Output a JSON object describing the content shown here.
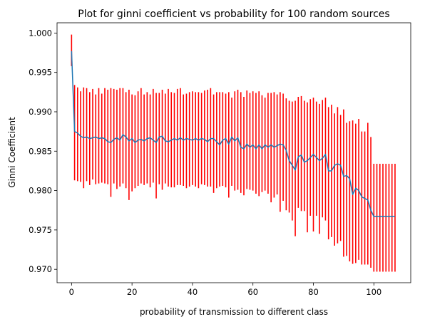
{
  "chart_data": {
    "type": "line",
    "title": "Plot for ginni coefficient vs probability for 100 random sources",
    "xlabel": "probability of transmission to different class",
    "ylabel": "Ginni Coefficient",
    "xlim": [
      -4.8,
      112.2
    ],
    "ylim": [
      0.9683,
      1.0013
    ],
    "xticks": [
      0,
      20,
      40,
      60,
      80,
      100
    ],
    "yticks": [
      0.97,
      0.975,
      0.98,
      0.985,
      0.99,
      0.995,
      1.0
    ],
    "ytick_labels": [
      "0.970",
      "0.975",
      "0.980",
      "0.985",
      "0.990",
      "0.995",
      "1.000"
    ],
    "grid": false,
    "series": [
      {
        "kind": "errorbar",
        "color": "#1f77b4",
        "ecolor": "#ff0000",
        "x": [
          0,
          1,
          2,
          3,
          4,
          5,
          6,
          7,
          8,
          9,
          10,
          11,
          12,
          13,
          14,
          15,
          16,
          17,
          18,
          19,
          20,
          21,
          22,
          23,
          24,
          25,
          26,
          27,
          28,
          29,
          30,
          31,
          32,
          33,
          34,
          35,
          36,
          37,
          38,
          39,
          40,
          41,
          42,
          43,
          44,
          45,
          46,
          47,
          48,
          49,
          50,
          51,
          52,
          53,
          54,
          55,
          56,
          57,
          58,
          59,
          60,
          61,
          62,
          63,
          64,
          65,
          66,
          67,
          68,
          69,
          70,
          71,
          72,
          73,
          74,
          75,
          76,
          77,
          78,
          79,
          80,
          81,
          82,
          83,
          84,
          85,
          86,
          87,
          88,
          89,
          90,
          91,
          92,
          93,
          94,
          95,
          96,
          97,
          98,
          99,
          100,
          101,
          102,
          103,
          104,
          105,
          106,
          107
        ],
        "y": [
          0.9977,
          0.9875,
          0.9873,
          0.9869,
          0.9867,
          0.9868,
          0.9866,
          0.9867,
          0.9868,
          0.9866,
          0.9867,
          0.9866,
          0.9862,
          0.9861,
          0.9865,
          0.9867,
          0.9864,
          0.9871,
          0.9868,
          0.9863,
          0.9866,
          0.9861,
          0.9864,
          0.9865,
          0.9863,
          0.9866,
          0.9867,
          0.9864,
          0.9861,
          0.9868,
          0.9869,
          0.9863,
          0.9862,
          0.9864,
          0.9866,
          0.9864,
          0.9867,
          0.9864,
          0.9866,
          0.9865,
          0.9864,
          0.9866,
          0.9864,
          0.9866,
          0.9865,
          0.9862,
          0.9866,
          0.9866,
          0.9862,
          0.9858,
          0.9864,
          0.9866,
          0.9859,
          0.9868,
          0.9863,
          0.9867,
          0.9855,
          0.9853,
          0.9859,
          0.9855,
          0.9858,
          0.9853,
          0.9858,
          0.9853,
          0.9858,
          0.9855,
          0.9858,
          0.9855,
          0.9857,
          0.9859,
          0.9858,
          0.9851,
          0.9838,
          0.9832,
          0.9826,
          0.9843,
          0.9845,
          0.9836,
          0.9838,
          0.9842,
          0.9846,
          0.9842,
          0.9838,
          0.9841,
          0.9846,
          0.9825,
          0.9825,
          0.9832,
          0.9834,
          0.9832,
          0.9818,
          0.9819,
          0.9815,
          0.9795,
          0.9803,
          0.98,
          0.9792,
          0.979,
          0.9788,
          0.9775,
          0.9767,
          0.9767,
          0.9767,
          0.9767,
          0.9767,
          0.9767,
          0.9767,
          0.9767
        ],
        "yerr_low": [
          0.9958,
          0.9813,
          0.9812,
          0.9811,
          0.9803,
          0.9812,
          0.9807,
          0.9814,
          0.9808,
          0.9809,
          0.981,
          0.9809,
          0.9808,
          0.9792,
          0.9809,
          0.9802,
          0.9805,
          0.9809,
          0.9803,
          0.9788,
          0.9799,
          0.9803,
          0.9806,
          0.9809,
          0.9807,
          0.9809,
          0.9804,
          0.981,
          0.979,
          0.9808,
          0.9801,
          0.9809,
          0.9805,
          0.9804,
          0.9804,
          0.9807,
          0.9807,
          0.9806,
          0.9803,
          0.9805,
          0.9807,
          0.9805,
          0.9803,
          0.9808,
          0.9807,
          0.9805,
          0.9805,
          0.9797,
          0.9803,
          0.9805,
          0.9806,
          0.9804,
          0.9791,
          0.9806,
          0.98,
          0.9801,
          0.9797,
          0.9794,
          0.9802,
          0.9801,
          0.98,
          0.9796,
          0.9793,
          0.9798,
          0.98,
          0.9796,
          0.9785,
          0.9791,
          0.9795,
          0.9773,
          0.9787,
          0.9775,
          0.9772,
          0.9762,
          0.9742,
          0.9778,
          0.9774,
          0.9774,
          0.9747,
          0.9768,
          0.9748,
          0.9768,
          0.9745,
          0.9766,
          0.9762,
          0.9738,
          0.9741,
          0.973,
          0.9733,
          0.9736,
          0.9716,
          0.9717,
          0.971,
          0.9707,
          0.9708,
          0.9712,
          0.9706,
          0.9706,
          0.9706,
          0.9702,
          0.9697,
          0.9697,
          0.9697,
          0.9697,
          0.9697,
          0.9697,
          0.9697,
          0.9697
        ],
        "yerr_high": [
          0.9998,
          0.9934,
          0.9931,
          0.9926,
          0.9931,
          0.993,
          0.9925,
          0.9929,
          0.9922,
          0.993,
          0.9923,
          0.993,
          0.9928,
          0.993,
          0.9929,
          0.9928,
          0.993,
          0.993,
          0.9925,
          0.9928,
          0.9922,
          0.9921,
          0.9926,
          0.993,
          0.9922,
          0.9925,
          0.9922,
          0.9929,
          0.9924,
          0.9924,
          0.9928,
          0.9923,
          0.9929,
          0.9925,
          0.9924,
          0.9929,
          0.993,
          0.9922,
          0.9923,
          0.9925,
          0.9926,
          0.9925,
          0.9925,
          0.9924,
          0.9927,
          0.9928,
          0.993,
          0.9922,
          0.9925,
          0.9925,
          0.9925,
          0.9923,
          0.9925,
          0.9918,
          0.9926,
          0.9928,
          0.9925,
          0.9919,
          0.9927,
          0.9924,
          0.9926,
          0.9924,
          0.9926,
          0.9921,
          0.9918,
          0.9924,
          0.9924,
          0.9925,
          0.9922,
          0.9925,
          0.9923,
          0.9917,
          0.9914,
          0.9913,
          0.9914,
          0.9919,
          0.992,
          0.9914,
          0.9912,
          0.9916,
          0.9918,
          0.9913,
          0.991,
          0.9915,
          0.9918,
          0.9906,
          0.9909,
          0.9898,
          0.9906,
          0.9896,
          0.9903,
          0.9886,
          0.9888,
          0.9889,
          0.9885,
          0.9891,
          0.9875,
          0.9875,
          0.9886,
          0.9868,
          0.9834,
          0.9834,
          0.9834,
          0.9834,
          0.9834,
          0.9834,
          0.9834,
          0.9834
        ]
      }
    ]
  }
}
